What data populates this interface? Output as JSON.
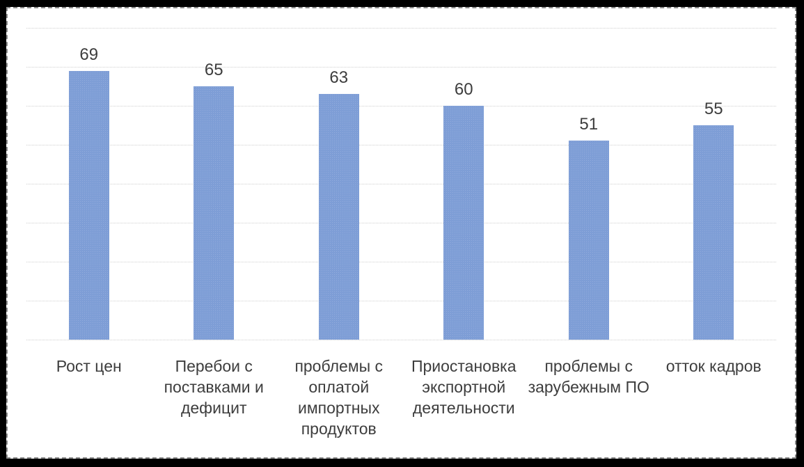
{
  "chart_data": {
    "type": "bar",
    "title": "",
    "xlabel": "",
    "ylabel": "",
    "categories": [
      "Рост цен",
      "Перебои с\nпоставками и\nдефицит",
      "проблемы с\nоплатой\nимпортных\nпродуктов",
      "Приостановка\nэкспортной\nдеятельности",
      "проблемы с\nзарубежным ПО",
      "отток кадров"
    ],
    "values": [
      69,
      65,
      63,
      60,
      51,
      55
    ],
    "data_labels_visible": true,
    "ylim": [
      0,
      80
    ],
    "grid_step": 10,
    "grid": true,
    "y_axis_labels_visible": false,
    "legend": false
  },
  "colors": {
    "bar_fill": "#4472c4",
    "gridline": "#cfcfcf",
    "label_text": "#3d3d3d",
    "background": "#ffffff",
    "selection_dash": "#8c8c8c",
    "outer_frame": "#000000"
  }
}
